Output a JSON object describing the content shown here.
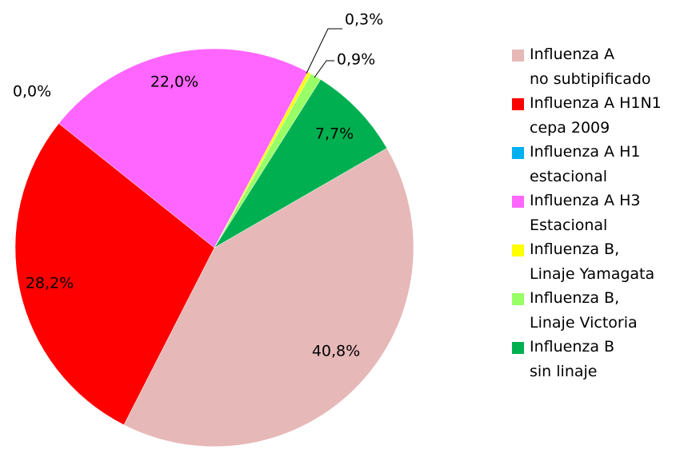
{
  "chart_data": {
    "type": "pie",
    "categories": [
      "Influenza A\nno subtipificado",
      "Influenza A H1N1\ncepa 2009",
      "Influenza A H1\nestacional",
      "Influenza A H3\nEstacional",
      "Influenza B,\nLinaje Yamagata",
      "Influenza B,\nLinaje Victoria",
      "Influenza B\nsin linaje"
    ],
    "values": [
      40.8,
      28.2,
      0.0,
      22.0,
      0.3,
      0.9,
      7.7
    ],
    "value_labels": [
      "40,8%",
      "28,2%",
      "0,0%",
      "22,0%",
      "0,3%",
      "0,9%",
      "7,7%"
    ],
    "colors": [
      "#e6b8b7",
      "#ff0000",
      "#00b0f0",
      "#ff66ff",
      "#ffff00",
      "#99ff66",
      "#00b050"
    ],
    "legend": "right"
  }
}
